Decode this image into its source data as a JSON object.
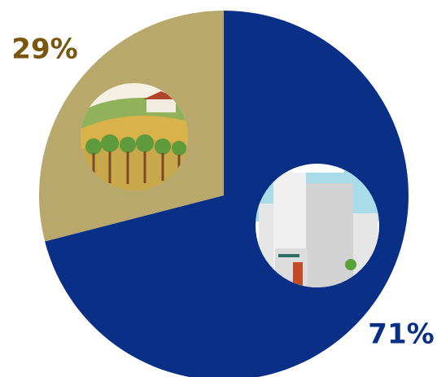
{
  "chart_data": {
    "type": "pie",
    "values": [
      71,
      29
    ],
    "value_labels": [
      "71%",
      "29%"
    ],
    "colors": [
      "#0a2f87",
      "#b8a86c"
    ],
    "label_colors": [
      "#0a2f87",
      "#7a560c"
    ]
  }
}
